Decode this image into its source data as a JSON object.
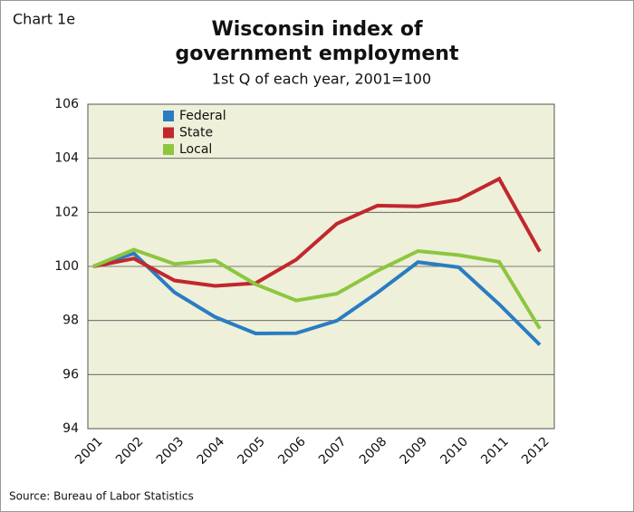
{
  "chart_data": {
    "type": "line",
    "chart_label": "Chart 1e",
    "title": [
      "Wisconsin index of",
      "government employment"
    ],
    "subtitle": "1st Q of each year, 2001=100",
    "source": "Source: Bureau of Labor Statistics",
    "categories": [
      "2001",
      "2002",
      "2003",
      "2004",
      "2005",
      "2006",
      "2007",
      "2008",
      "2009",
      "2010",
      "2011",
      "2012"
    ],
    "series": [
      {
        "name": "Federal",
        "color": "#2a7cc2",
        "values": [
          100,
          100.48,
          99.04,
          98.13,
          97.52,
          97.53,
          97.99,
          99.03,
          100.16,
          99.97,
          98.6,
          97.1
        ]
      },
      {
        "name": "State",
        "color": "#c1272d",
        "values": [
          100,
          100.29,
          99.48,
          99.28,
          99.38,
          100.25,
          101.58,
          102.25,
          102.22,
          102.47,
          103.24,
          100.55
        ]
      },
      {
        "name": "Local",
        "color": "#8dc63f",
        "values": [
          100,
          100.62,
          100.09,
          100.22,
          99.34,
          98.74,
          98.99,
          99.84,
          100.57,
          100.42,
          100.17,
          97.7
        ]
      }
    ],
    "ylim": [
      94,
      106
    ],
    "yticks": [
      94,
      96,
      98,
      100,
      102,
      104,
      106
    ],
    "grid": true,
    "legend": "top-left"
  }
}
